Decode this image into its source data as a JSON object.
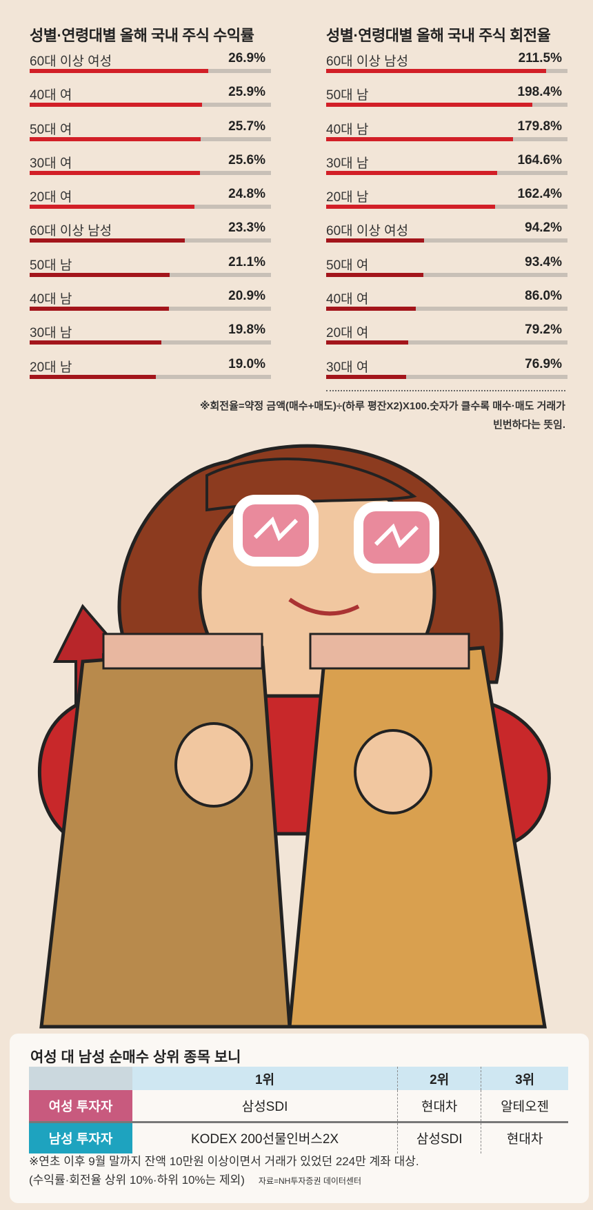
{
  "chart_data": [
    {
      "type": "bar",
      "orientation": "horizontal",
      "title": "성별·연령대별 올해 국내 주식 수익률",
      "categories": [
        "60대 이상 여성",
        "40대 여",
        "50대 여",
        "30대 여",
        "20대 여",
        "60대 이상 남성",
        "50대 남",
        "40대 남",
        "30대 남",
        "20대 남"
      ],
      "values": [
        26.9,
        25.9,
        25.7,
        25.6,
        24.8,
        23.3,
        21.1,
        20.9,
        19.8,
        19.0
      ],
      "labels": [
        "26.9%",
        "25.9%",
        "25.7%",
        "25.6%",
        "24.8%",
        "23.3%",
        "21.1%",
        "20.9%",
        "19.8%",
        "19.0%"
      ],
      "xlim": [
        0,
        36.3
      ],
      "colors": {
        "women": "#d21f27",
        "men": "#a3151b",
        "track": "#c8c0b7"
      }
    },
    {
      "type": "bar",
      "orientation": "horizontal",
      "title": "성별·연령대별 올해 국내 주식 회전율",
      "categories": [
        "60대 이상 남성",
        "50대 남",
        "40대 남",
        "30대 남",
        "20대 남",
        "60대 이상 여성",
        "50대 여",
        "40대 여",
        "20대 여",
        "30대 여"
      ],
      "values": [
        211.5,
        198.4,
        179.8,
        164.6,
        162.4,
        94.2,
        93.4,
        86.0,
        79.2,
        76.9
      ],
      "labels": [
        "211.5%",
        "198.4%",
        "179.8%",
        "164.6%",
        "162.4%",
        "94.2%",
        "93.4%",
        "86.0%",
        "79.2%",
        "76.9%"
      ],
      "xlim": [
        0,
        232
      ],
      "colors": {
        "men": "#d21f27",
        "women": "#a3151b",
        "track": "#c8c0b7"
      }
    }
  ],
  "note": [
    "※회전율=약정 금액(매수+매도)÷(하루 평잔X2)X100.숫자가 클수록 매수·매도 거래가",
    "빈번하다는 뜻임."
  ],
  "table": {
    "title": "여성 대 남성 순매수 상위 종목 보니",
    "headers": [
      "1위",
      "2위",
      "3위"
    ],
    "rows": [
      {
        "label": "여성 투자자",
        "color": "#c85a7e",
        "items": [
          "삼성SDI",
          "현대차",
          "알테오젠"
        ]
      },
      {
        "label": "남성 투자자",
        "color": "#1ea3bf",
        "items": [
          "KODEX 200선물인버스2X",
          "삼성SDI",
          "현대차"
        ]
      }
    ],
    "footnote": [
      "※연초 이후 9월 말까지 잔액 10만원 이상이면서 거래가 있었던 224만 계좌 대상.",
      "(수익률·회전율 상위 10%·하위 10%는 제외)"
    ],
    "source": "자료=NH투자증권 데이터센터"
  }
}
